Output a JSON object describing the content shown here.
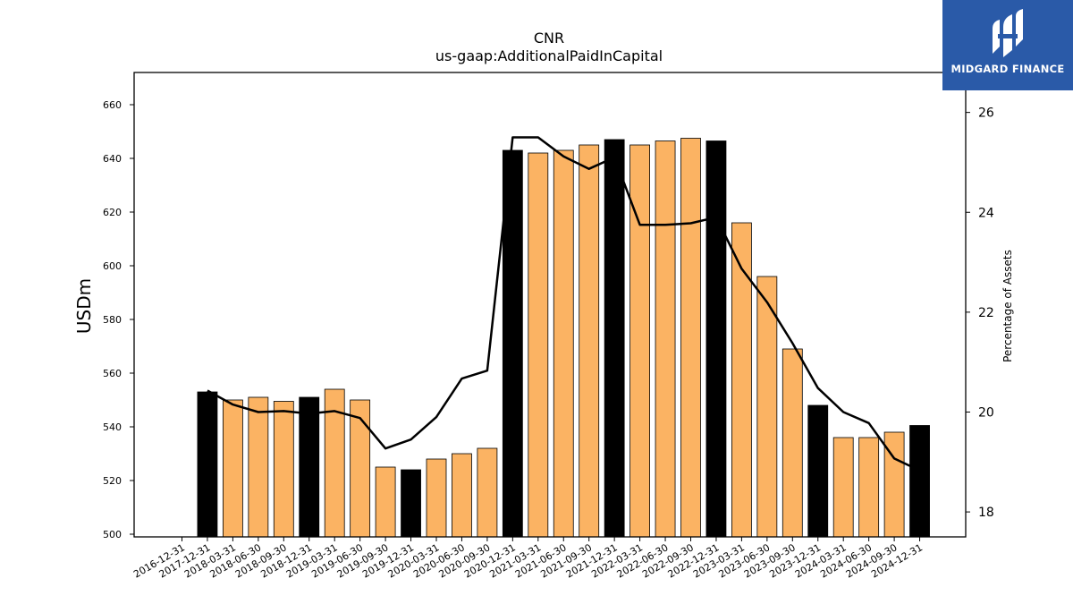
{
  "chart_data": {
    "type": "bar",
    "title": "CNR",
    "subtitle": "us-gaap:AdditionalPaidInCapital",
    "ylabel": "USDm",
    "y2label": "Percentage of Assets",
    "ylim": [
      499,
      672
    ],
    "y2lim": [
      17.5,
      26.8
    ],
    "yticks": [
      500,
      520,
      540,
      560,
      580,
      600,
      620,
      640,
      660
    ],
    "y2ticks": [
      18,
      20,
      22,
      24,
      26
    ],
    "categories": [
      "2016-12-31",
      "2017-12-31",
      "2018-03-31",
      "2018-06-30",
      "2018-09-30",
      "2018-12-31",
      "2019-03-31",
      "2019-06-30",
      "2019-09-30",
      "2019-12-31",
      "2020-03-31",
      "2020-06-30",
      "2020-09-30",
      "2020-12-31",
      "2021-03-31",
      "2021-06-30",
      "2021-09-30",
      "2021-12-31",
      "2022-03-31",
      "2022-06-30",
      "2022-09-30",
      "2022-12-31",
      "2023-03-31",
      "2023-06-30",
      "2023-09-30",
      "2023-12-31",
      "2024-03-31",
      "2024-06-30",
      "2024-09-30",
      "2024-12-31"
    ],
    "bars": [
      {
        "label": "2017-12-31",
        "value": 553,
        "annual": true
      },
      {
        "label": "2018-03-31",
        "value": 550,
        "annual": false
      },
      {
        "label": "2018-06-30",
        "value": 551,
        "annual": false
      },
      {
        "label": "2018-09-30",
        "value": 549.5,
        "annual": false
      },
      {
        "label": "2018-12-31",
        "value": 551,
        "annual": true
      },
      {
        "label": "2019-03-31",
        "value": 554,
        "annual": false
      },
      {
        "label": "2019-06-30",
        "value": 550,
        "annual": false
      },
      {
        "label": "2019-09-30",
        "value": 525,
        "annual": false
      },
      {
        "label": "2019-12-31",
        "value": 524,
        "annual": true
      },
      {
        "label": "2020-03-31",
        "value": 528,
        "annual": false
      },
      {
        "label": "2020-06-30",
        "value": 530,
        "annual": false
      },
      {
        "label": "2020-09-30",
        "value": 532,
        "annual": false
      },
      {
        "label": "2020-12-31",
        "value": 643,
        "annual": true
      },
      {
        "label": "2021-03-31",
        "value": 642,
        "annual": false
      },
      {
        "label": "2021-06-30",
        "value": 643,
        "annual": false
      },
      {
        "label": "2021-09-30",
        "value": 645,
        "annual": false
      },
      {
        "label": "2021-12-31",
        "value": 647,
        "annual": true
      },
      {
        "label": "2022-03-31",
        "value": 645,
        "annual": false
      },
      {
        "label": "2022-06-30",
        "value": 646.5,
        "annual": false
      },
      {
        "label": "2022-09-30",
        "value": 647.5,
        "annual": false
      },
      {
        "label": "2022-12-31",
        "value": 646.5,
        "annual": true
      },
      {
        "label": "2023-03-31",
        "value": 616,
        "annual": false
      },
      {
        "label": "2023-06-30",
        "value": 596,
        "annual": false
      },
      {
        "label": "2023-09-30",
        "value": 569,
        "annual": false
      },
      {
        "label": "2023-12-31",
        "value": 548,
        "annual": true
      },
      {
        "label": "2024-03-31",
        "value": 536,
        "annual": false
      },
      {
        "label": "2024-06-30",
        "value": 536,
        "annual": false
      },
      {
        "label": "2024-09-30",
        "value": 538,
        "annual": false
      },
      {
        "label": "2024-12-31",
        "value": 540.5,
        "annual": true
      }
    ],
    "line": {
      "axis": "right",
      "x": [
        "2017-12-31",
        "2018-03-31",
        "2018-06-30",
        "2018-09-30",
        "2018-12-31",
        "2019-03-31",
        "2019-06-30",
        "2019-09-30",
        "2019-12-31",
        "2020-03-31",
        "2020-06-30",
        "2020-09-30",
        "2020-12-31",
        "2021-03-31",
        "2021-06-30",
        "2021-09-30",
        "2021-12-31",
        "2022-03-31",
        "2022-06-30",
        "2022-09-30",
        "2022-12-31",
        "2023-03-31",
        "2023-06-30",
        "2023-09-30",
        "2023-12-31",
        "2024-03-31",
        "2024-06-30",
        "2024-09-30",
        "2024-12-31"
      ],
      "values": [
        20.43,
        20.15,
        20.0,
        20.02,
        19.97,
        20.02,
        19.88,
        19.27,
        19.45,
        19.9,
        20.67,
        20.83,
        25.5,
        25.5,
        25.12,
        24.87,
        25.1,
        23.75,
        23.75,
        23.78,
        23.9,
        22.87,
        22.2,
        21.38,
        20.48,
        20.0,
        19.78,
        19.07,
        18.83
      ]
    },
    "colors": {
      "annual": "#000000",
      "quarter": "#fbb363",
      "line": "#000000"
    },
    "grid": false
  },
  "logo": {
    "text": "MIDGARD FINANCE",
    "icon": "midgard-logo-icon"
  }
}
